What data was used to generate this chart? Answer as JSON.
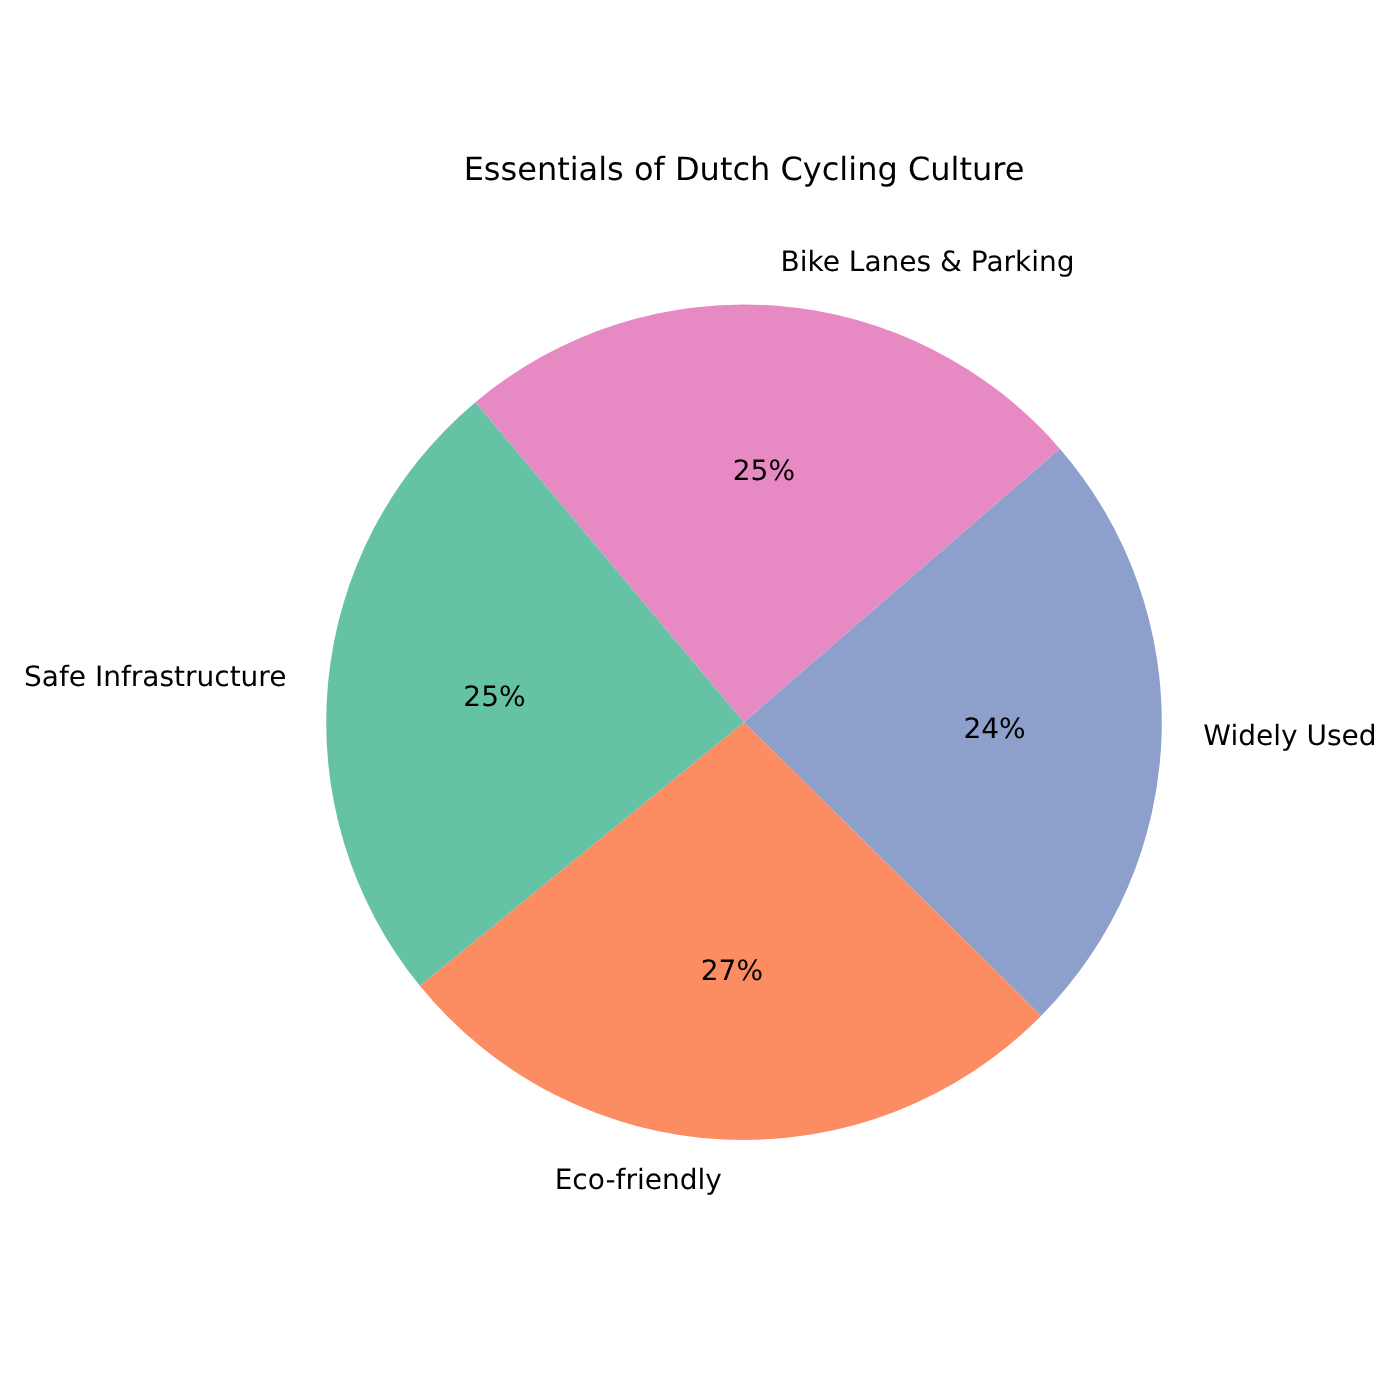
{
  "chart_data": {
    "type": "pie",
    "title": "Essentials of Dutch Cycling Culture",
    "categories": [
      "Bike Lanes & Parking",
      "Widely Used",
      "Eco-friendly",
      "Safe Infrastructure"
    ],
    "values": [
      25,
      24,
      27,
      25
    ],
    "value_labels": [
      "25%",
      "24%",
      "27%",
      "25%"
    ],
    "colors": [
      "#e78ac3",
      "#8da0cb",
      "#fc8d62",
      "#66c2a5"
    ]
  }
}
